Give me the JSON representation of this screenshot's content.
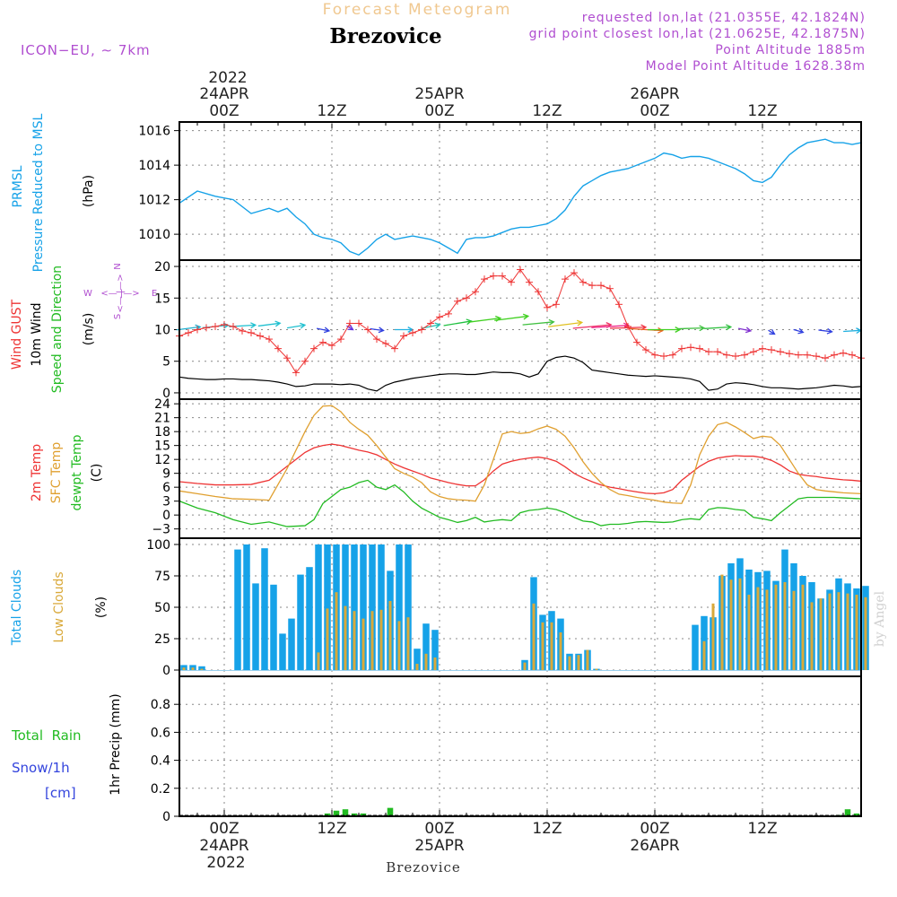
{
  "header": {
    "product": "Forecast Meteogram",
    "location": "Brezovice",
    "model": "ICON−EU, ∼ 7km",
    "requested": "requested lon,lat (21.0355E, 42.1824N)",
    "gridpoint": "grid point closest lon,lat (21.0625E, 42.1875N)",
    "point_alt": "Point Altitude 1885m",
    "model_alt": "Model Point Altitude 1628.38m",
    "credit": "by Angel",
    "footer_location": "Brezovice"
  },
  "time_axis": {
    "top_year": "2022",
    "labels": [
      {
        "hour": 0,
        "time": "00Z",
        "date": "24APR"
      },
      {
        "hour": 12,
        "time": "12Z",
        "date": ""
      },
      {
        "hour": 24,
        "time": "00Z",
        "date": "25APR"
      },
      {
        "hour": 36,
        "time": "12Z",
        "date": ""
      },
      {
        "hour": 48,
        "time": "00Z",
        "date": "26APR"
      },
      {
        "hour": 60,
        "time": "12Z",
        "date": ""
      }
    ],
    "bottom_year": "2022",
    "start_hour": -5,
    "end_hour": 71
  },
  "legends": {
    "prmsl": {
      "line1": "PRMSL",
      "line2": "Pressure Reduced to MSL",
      "unit": "(hPa)",
      "color": "#16a2e8"
    },
    "wind": {
      "gust": "Wind GUST",
      "wind": "10m Wind",
      "speed": "Speed and Direction",
      "unit": "(m/s)",
      "gust_color": "#ee3333",
      "wind_color": "#000000",
      "speed_color": "#22bb22"
    },
    "compass": {
      "w": "W",
      "e": "E",
      "n": "N",
      "s": "S",
      "arrow": "<— |—>",
      "color": "#b04ed0"
    },
    "temp": {
      "t2m": "2m Temp",
      "sfc": "SFC Temp",
      "dew": "dewpt Temp",
      "unit": "(C)",
      "t2m_color": "#ee3333",
      "sfc_color": "#e0a030",
      "dew_color": "#22bb22"
    },
    "clouds": {
      "total": "Total Clouds",
      "low": "Low Clouds",
      "unit": "(%)",
      "total_color": "#16a2e8",
      "low_color": "#d9a93a"
    },
    "precip": {
      "rain": "Total  Rain",
      "snow": "Snow/1h",
      "snow_unit": "[cm]",
      "axis": "1hr Precip (mm)",
      "rain_color": "#22bb22",
      "snow_color": "#3344dd"
    }
  },
  "chart_data": [
    {
      "type": "line",
      "name": "prmsl",
      "ylim": [
        1008.5,
        1016.5
      ],
      "yticks": [
        1010,
        1012,
        1014,
        1016
      ],
      "x": [
        -5,
        -3,
        -1,
        1,
        3,
        5,
        6,
        7,
        8,
        9,
        10,
        11,
        12,
        13,
        14,
        15,
        16,
        17,
        18,
        19,
        20,
        21,
        22,
        23,
        24,
        25,
        26,
        27,
        28,
        29,
        30,
        31,
        32,
        33,
        34,
        35,
        36,
        37,
        38,
        39,
        40,
        41,
        42,
        43,
        44,
        45,
        46,
        47,
        48,
        49,
        50,
        51,
        52,
        53,
        54,
        55,
        56,
        57,
        58,
        59,
        60,
        61,
        62,
        63,
        64,
        65,
        66,
        67,
        68,
        69,
        70,
        71
      ],
      "values": [
        1011.8,
        1012.5,
        1012.2,
        1012.0,
        1011.2,
        1011.5,
        1011.3,
        1011.5,
        1011.0,
        1010.6,
        1010.0,
        1009.8,
        1009.7,
        1009.5,
        1009.0,
        1008.8,
        1009.2,
        1009.7,
        1010.0,
        1009.7,
        1009.8,
        1009.9,
        1009.8,
        1009.7,
        1009.5,
        1009.2,
        1008.9,
        1009.7,
        1009.8,
        1009.8,
        1009.9,
        1010.1,
        1010.3,
        1010.4,
        1010.4,
        1010.5,
        1010.6,
        1010.9,
        1011.4,
        1012.2,
        1012.8,
        1013.1,
        1013.4,
        1013.6,
        1013.7,
        1013.8,
        1014.0,
        1014.2,
        1014.4,
        1014.7,
        1014.6,
        1014.4,
        1014.5,
        1014.5,
        1014.4,
        1014.2,
        1014.0,
        1013.8,
        1013.5,
        1013.1,
        1013.0,
        1013.3,
        1014.0,
        1014.6,
        1015.0,
        1015.3,
        1015.4,
        1015.5,
        1015.3,
        1015.3,
        1015.2,
        1015.3
      ]
    },
    {
      "type": "line",
      "name": "wind",
      "ylim": [
        -1,
        21
      ],
      "yticks": [
        0,
        5,
        10,
        15,
        20
      ],
      "x": [
        -5,
        -4,
        -3,
        -2,
        -1,
        0,
        1,
        2,
        3,
        4,
        5,
        6,
        7,
        8,
        9,
        10,
        11,
        12,
        13,
        14,
        15,
        16,
        17,
        18,
        19,
        20,
        21,
        22,
        23,
        24,
        25,
        26,
        27,
        28,
        29,
        30,
        31,
        32,
        33,
        34,
        35,
        36,
        37,
        38,
        39,
        40,
        41,
        42,
        43,
        44,
        45,
        46,
        47,
        48,
        49,
        50,
        51,
        52,
        53,
        54,
        55,
        56,
        57,
        58,
        59,
        60,
        61,
        62,
        63,
        64,
        65,
        66,
        67,
        68,
        69,
        70,
        71
      ],
      "gust": [
        9,
        9.5,
        10,
        10.3,
        10.5,
        10.8,
        10.5,
        9.8,
        9.5,
        9,
        8.5,
        7,
        5.5,
        3.2,
        5,
        7,
        8,
        7.5,
        8.5,
        11,
        11,
        10,
        8.5,
        7.8,
        7,
        9,
        9.5,
        10,
        11,
        12,
        12.5,
        14.5,
        15,
        16,
        18,
        18.5,
        18.5,
        17.5,
        19.5,
        17.5,
        16,
        13.5,
        14,
        18,
        19,
        17.5,
        17,
        17,
        16.5,
        14,
        10.5,
        8,
        6.8,
        6,
        5.8,
        6,
        7,
        7.2,
        7,
        6.5,
        6.5,
        6,
        5.8,
        6,
        6.5,
        7,
        6.8,
        6.5,
        6.2,
        6,
        6,
        5.8,
        5.5,
        6,
        6.3,
        6,
        5.5
      ],
      "wind": [
        2.5,
        2.3,
        2.2,
        2.1,
        2.1,
        2.2,
        2.2,
        2.1,
        2.1,
        2.0,
        1.9,
        1.7,
        1.4,
        1.0,
        1.1,
        1.4,
        1.4,
        1.4,
        1.3,
        1.4,
        1.2,
        0.6,
        0.3,
        1.2,
        1.7,
        2.0,
        2.3,
        2.5,
        2.7,
        2.9,
        3.0,
        3.0,
        2.9,
        2.9,
        3.1,
        3.3,
        3.2,
        3.2,
        3.0,
        2.5,
        3.0,
        5.0,
        5.6,
        5.8,
        5.5,
        4.8,
        3.6,
        3.4,
        3.2,
        3.0,
        2.8,
        2.7,
        2.6,
        2.7,
        2.6,
        2.5,
        2.4,
        2.2,
        1.8,
        0.4,
        0.6,
        1.4,
        1.6,
        1.5,
        1.3,
        1.0,
        0.8,
        0.8,
        0.7,
        0.6,
        0.7,
        0.8,
        1.0,
        1.2,
        1.1,
        0.9,
        1.0
      ],
      "arrows": [
        {
          "x": -4,
          "y": 10.2,
          "dir": 70,
          "len": 28,
          "color": "#20b0d0"
        },
        {
          "x": -1,
          "y": 10.5,
          "dir": 75,
          "len": 30,
          "color": "#20c0d0"
        },
        {
          "x": 2,
          "y": 10.6,
          "dir": 80,
          "len": 30,
          "color": "#20c0d0"
        },
        {
          "x": 5,
          "y": 10.8,
          "dir": 70,
          "len": 26,
          "color": "#20c0d0"
        },
        {
          "x": 8,
          "y": 10.5,
          "dir": 65,
          "len": 22,
          "color": "#20c0d0"
        },
        {
          "x": 11,
          "y": 10.0,
          "dir": 120,
          "len": 16,
          "color": "#3040e0"
        },
        {
          "x": 14,
          "y": 10.3,
          "dir": 150,
          "len": 14,
          "color": "#6030e0"
        },
        {
          "x": 17,
          "y": 10.0,
          "dir": 110,
          "len": 16,
          "color": "#3040e0"
        },
        {
          "x": 20,
          "y": 10.0,
          "dir": 90,
          "len": 20,
          "color": "#20b0e0"
        },
        {
          "x": 23,
          "y": 10.5,
          "dir": 60,
          "len": 24,
          "color": "#20c0b0"
        },
        {
          "x": 26,
          "y": 11.0,
          "dir": 65,
          "len": 34,
          "color": "#20c040"
        },
        {
          "x": 29,
          "y": 11.5,
          "dir": 70,
          "len": 38,
          "color": "#40d020"
        },
        {
          "x": 32,
          "y": 11.8,
          "dir": 70,
          "len": 40,
          "color": "#40d020"
        },
        {
          "x": 35,
          "y": 11.0,
          "dir": 75,
          "len": 36,
          "color": "#40c040"
        },
        {
          "x": 38,
          "y": 10.8,
          "dir": 70,
          "len": 40,
          "color": "#e0c020"
        },
        {
          "x": 41,
          "y": 10.5,
          "dir": 75,
          "len": 44,
          "color": "#ee3366"
        },
        {
          "x": 43,
          "y": 10.5,
          "dir": 80,
          "len": 42,
          "color": "#ee2288"
        },
        {
          "x": 45,
          "y": 10.3,
          "dir": 85,
          "len": 40,
          "color": "#ee3344"
        },
        {
          "x": 47,
          "y": 10.0,
          "dir": 100,
          "len": 38,
          "color": "#ee6622"
        },
        {
          "x": 49,
          "y": 10.0,
          "dir": 90,
          "len": 36,
          "color": "#40d020"
        },
        {
          "x": 52,
          "y": 10.2,
          "dir": 85,
          "len": 30,
          "color": "#40c040"
        },
        {
          "x": 55,
          "y": 10.3,
          "dir": 80,
          "len": 30,
          "color": "#30c040"
        },
        {
          "x": 58,
          "y": 10.0,
          "dir": 120,
          "len": 16,
          "color": "#8030d0"
        },
        {
          "x": 61,
          "y": 9.6,
          "dir": 150,
          "len": 14,
          "color": "#3040e0"
        },
        {
          "x": 64,
          "y": 9.8,
          "dir": 130,
          "len": 14,
          "color": "#3040e0"
        },
        {
          "x": 67,
          "y": 9.8,
          "dir": 110,
          "len": 16,
          "color": "#3040e0"
        },
        {
          "x": 70,
          "y": 9.8,
          "dir": 80,
          "len": 20,
          "color": "#20b0e0"
        }
      ]
    },
    {
      "type": "line",
      "name": "temperature",
      "ylim": [
        -5,
        25
      ],
      "yticks": [
        -3,
        0,
        3,
        6,
        9,
        12,
        15,
        18,
        21,
        24
      ],
      "x": [
        -5,
        -3,
        -1,
        1,
        3,
        5,
        7,
        9,
        10,
        11,
        12,
        13,
        14,
        15,
        16,
        17,
        18,
        19,
        20,
        21,
        22,
        23,
        24,
        25,
        26,
        27,
        28,
        29,
        30,
        31,
        32,
        33,
        34,
        35,
        36,
        37,
        38,
        39,
        40,
        41,
        42,
        43,
        44,
        45,
        46,
        47,
        48,
        49,
        50,
        51,
        52,
        53,
        54,
        55,
        56,
        57,
        58,
        59,
        60,
        61,
        62,
        63,
        64,
        65,
        66,
        67,
        68,
        69,
        70,
        71
      ],
      "t2m": [
        7.2,
        6.8,
        6.5,
        6.5,
        6.6,
        7.5,
        10.5,
        13.5,
        14.5,
        15.0,
        15.3,
        15.0,
        14.5,
        14.0,
        13.6,
        13.0,
        12.0,
        11.0,
        10.2,
        9.5,
        8.8,
        8.0,
        7.5,
        7.0,
        6.6,
        6.3,
        6.3,
        7.6,
        9.5,
        11.0,
        11.6,
        12.0,
        12.3,
        12.5,
        12.2,
        11.6,
        10.4,
        9.0,
        8.0,
        7.2,
        6.5,
        6.0,
        5.7,
        5.3,
        5.0,
        4.7,
        4.6,
        4.8,
        5.5,
        7.5,
        9.0,
        10.5,
        11.6,
        12.3,
        12.6,
        12.8,
        12.7,
        12.7,
        12.4,
        11.8,
        10.8,
        9.5,
        8.8,
        8.5,
        8.3,
        8.0,
        7.8,
        7.6,
        7.5,
        7.3
      ],
      "sfc": [
        5.2,
        4.6,
        4.0,
        3.5,
        3.4,
        3.2,
        10.0,
        18.0,
        21.5,
        23.5,
        23.6,
        22.3,
        20.0,
        18.5,
        17.2,
        15.0,
        12.5,
        10.0,
        9.0,
        8.2,
        7.0,
        5.0,
        4.0,
        3.5,
        3.3,
        3.2,
        3.0,
        6.5,
        12.0,
        17.5,
        18.0,
        17.6,
        17.8,
        18.6,
        19.2,
        18.5,
        17.0,
        14.5,
        11.5,
        9.0,
        7.0,
        5.5,
        4.5,
        4.2,
        3.8,
        3.5,
        3.2,
        2.8,
        2.6,
        2.5,
        6.5,
        13.0,
        17.0,
        19.5,
        20.0,
        19.0,
        17.8,
        16.5,
        17.0,
        16.8,
        15.0,
        12.0,
        9.0,
        6.5,
        5.5,
        5.2,
        5.0,
        4.8,
        4.7,
        4.6
      ],
      "dew": [
        3.0,
        1.5,
        0.5,
        -1.0,
        -2.0,
        -1.5,
        -2.5,
        -2.3,
        -1.0,
        2.5,
        4.0,
        5.5,
        6.0,
        7.0,
        7.5,
        6.0,
        5.5,
        6.5,
        5.0,
        3.0,
        1.5,
        0.5,
        -0.5,
        -1.0,
        -1.6,
        -1.2,
        -0.5,
        -1.5,
        -1.2,
        -1.0,
        -1.2,
        0.5,
        1.0,
        1.2,
        1.5,
        1.2,
        0.5,
        -0.5,
        -1.3,
        -1.5,
        -2.3,
        -2.0,
        -2.0,
        -1.8,
        -1.5,
        -1.4,
        -1.5,
        -1.6,
        -1.5,
        -1.0,
        -0.8,
        -1.0,
        1.2,
        1.6,
        1.5,
        1.2,
        1.0,
        -0.5,
        -0.8,
        -1.2,
        0.5,
        2.0,
        3.5,
        3.8,
        3.8,
        3.8,
        3.8,
        3.7,
        3.6,
        3.5
      ]
    },
    {
      "type": "bar",
      "name": "clouds",
      "ylim": [
        -5,
        105
      ],
      "yticks": [
        0,
        25,
        50,
        75,
        100
      ],
      "x": [
        -5,
        -4,
        -3,
        -2,
        -1,
        0,
        1,
        2,
        3,
        4,
        5,
        6,
        7,
        8,
        9,
        10,
        11,
        12,
        13,
        14,
        15,
        16,
        17,
        18,
        19,
        20,
        21,
        22,
        23,
        24,
        25,
        26,
        27,
        28,
        29,
        30,
        31,
        32,
        33,
        34,
        35,
        36,
        37,
        38,
        39,
        40,
        41,
        42,
        43,
        44,
        45,
        46,
        47,
        48,
        49,
        50,
        51,
        52,
        53,
        54,
        55,
        56,
        57,
        58,
        59,
        60,
        61,
        62,
        63,
        64,
        65,
        66,
        67,
        68,
        69,
        70,
        71
      ],
      "total": [
        4,
        4,
        3,
        0,
        0,
        0,
        96,
        100,
        69,
        97,
        68,
        29,
        41,
        76,
        82,
        100,
        100,
        100,
        100,
        100,
        100,
        100,
        100,
        79,
        100,
        100,
        17,
        37,
        32,
        0,
        0,
        0,
        0,
        0,
        0,
        0,
        0,
        0,
        8,
        74,
        44,
        47,
        41,
        13,
        13,
        16,
        1,
        0,
        0,
        0,
        0,
        0,
        0,
        0,
        0,
        0,
        0,
        36,
        43,
        42,
        75,
        85,
        89,
        80,
        78,
        79,
        71,
        96,
        85,
        75,
        70,
        57,
        64,
        73,
        69,
        65,
        67
      ],
      "low": [
        2,
        2,
        1,
        0,
        0,
        0,
        0,
        0,
        0,
        0,
        0,
        0,
        0,
        0,
        0,
        14,
        49,
        62,
        51,
        47,
        41,
        47,
        48,
        55,
        39,
        42,
        5,
        13,
        10,
        0,
        0,
        0,
        0,
        0,
        0,
        0,
        0,
        0,
        6,
        53,
        38,
        38,
        30,
        11,
        12,
        16,
        1,
        0,
        0,
        0,
        0,
        0,
        0,
        0,
        0,
        0,
        0,
        0,
        23,
        53,
        76,
        72,
        73,
        60,
        66,
        64,
        68,
        70,
        63,
        68,
        54,
        57,
        61,
        62,
        61,
        60,
        58
      ]
    },
    {
      "type": "bar",
      "name": "precip",
      "ylim": [
        0,
        1.0
      ],
      "yticks": [
        0,
        0.2,
        0.4,
        0.6,
        0.8
      ],
      "x": [
        11,
        12,
        13,
        14,
        15,
        18,
        68,
        69,
        70
      ],
      "rain": [
        0.02,
        0.04,
        0.05,
        0.02,
        0.02,
        0.06,
        0.01,
        0.05,
        0.02
      ]
    }
  ]
}
